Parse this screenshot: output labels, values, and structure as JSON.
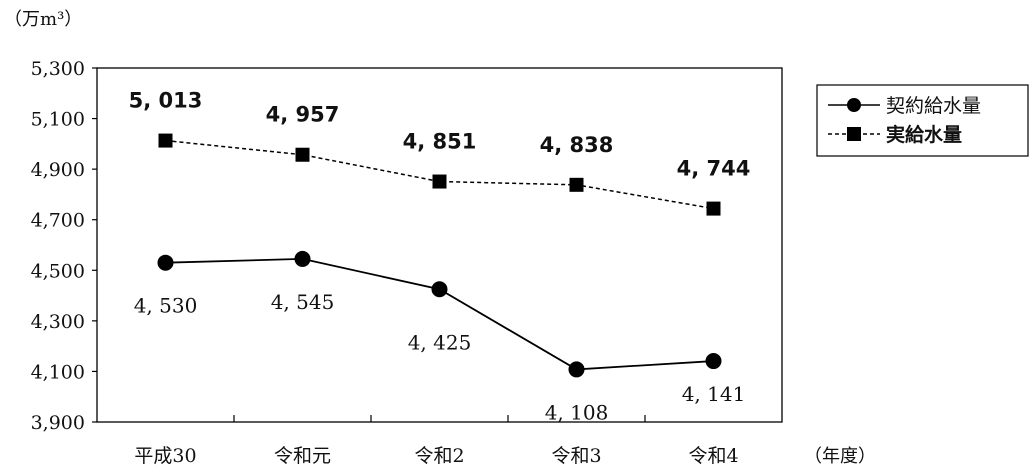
{
  "chart_data": {
    "type": "line",
    "y_unit_label": "（万m³）",
    "x_unit_label": "（年度）",
    "categories": [
      "平成30",
      "令和元",
      "令和2",
      "令和3",
      "令和4"
    ],
    "ylim": [
      3900,
      5300
    ],
    "y_ticks": [
      3900,
      4100,
      4300,
      4500,
      4700,
      4900,
      5100,
      5300
    ],
    "y_tick_labels": [
      "3,900",
      "4,100",
      "4,300",
      "4,500",
      "4,700",
      "4,900",
      "5,100",
      "5,300"
    ],
    "grid": false,
    "legend_position": "right",
    "series": [
      {
        "name": "契約給水量",
        "marker": "circle",
        "line_style": "solid",
        "color": "#000000",
        "values": [
          4530,
          4545,
          4425,
          4108,
          4141
        ],
        "labels": [
          "4, 530",
          "4, 545",
          "4, 425",
          "4, 108",
          "4, 141"
        ]
      },
      {
        "name": "実給水量",
        "marker": "square",
        "line_style": "dashed",
        "color": "#000000",
        "values": [
          5013,
          4957,
          4851,
          4838,
          4744
        ],
        "labels": [
          "5, 013",
          "4, 957",
          "4, 851",
          "4, 838",
          "4, 744"
        ]
      }
    ]
  }
}
